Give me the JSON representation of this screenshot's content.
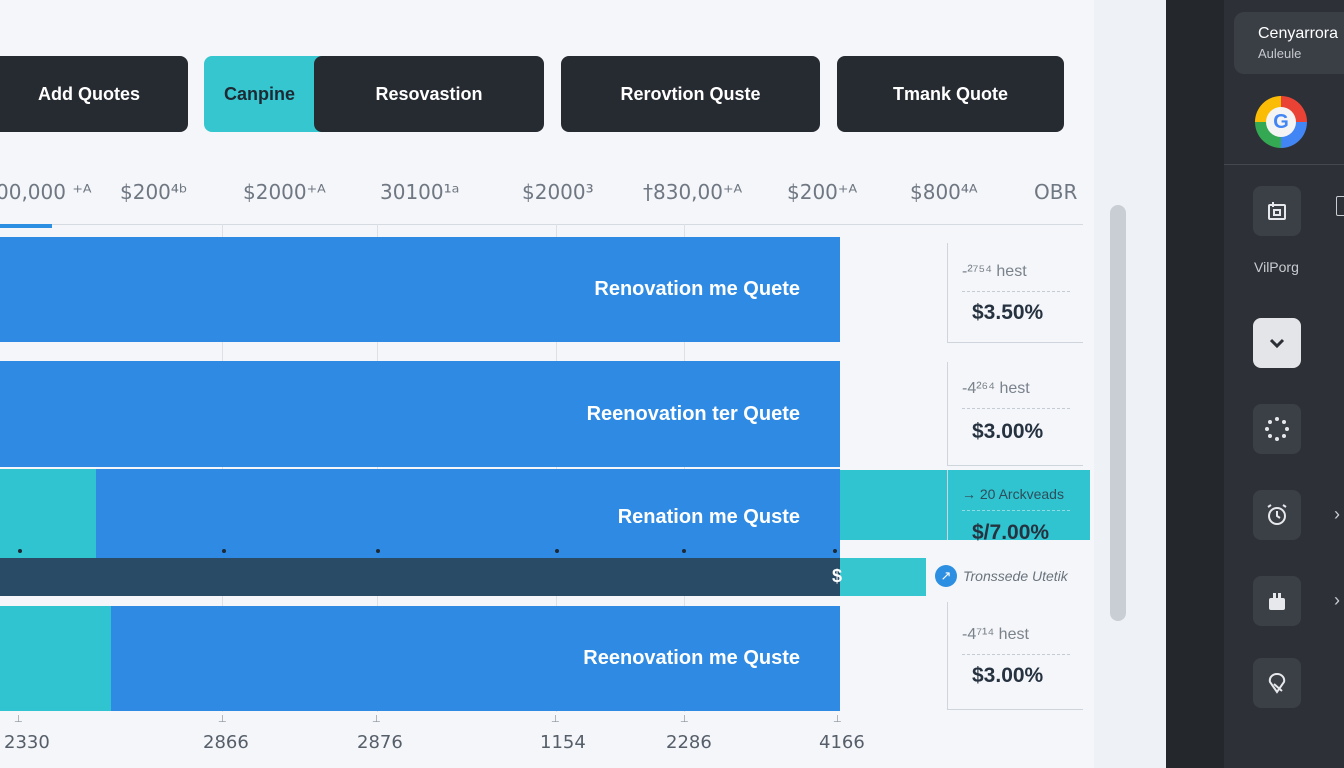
{
  "toolbar": {
    "add_quotes": "Add Quotes",
    "canpine": "Canpine",
    "resovastion": "Resovastion",
    "renovation_quote": "Rerovtion Quste",
    "tmank_quote": "Tmank Quote"
  },
  "header_values": [
    "00,000 ⁺ᴬ",
    "$200⁴ᵇ",
    "$2000⁺ᴬ",
    "30100¹ᵃ",
    "$2000³",
    "†830,00⁺ᴬ",
    "$200⁺ᴬ",
    "$800⁴ᴬ",
    "OBR"
  ],
  "bars": [
    {
      "label": "Renovation me Quete"
    },
    {
      "label": "Reenovation ter Quete"
    },
    {
      "label": "Renation me Quste"
    },
    {
      "label": "Reenovation me Quste"
    }
  ],
  "dollar_mark": "$",
  "cards": [
    {
      "label": "-²⁷⁵⁴ hest",
      "value": "$3.50%"
    },
    {
      "label": "-4²⁶⁴ hest",
      "value": "$3.00%"
    },
    {
      "label": "→ 20 Arckveads",
      "value": "$/7.00%"
    },
    {
      "label": "-4⁷¹⁴ hest",
      "value": "$3.00%"
    }
  ],
  "status": {
    "icon": "arrow-icon",
    "text": "Tronssede Utetik"
  },
  "x_labels": [
    "2330",
    "2866",
    "2876",
    "1154",
    "2286",
    "4166"
  ],
  "side_panel": {
    "account_name": "Cenyarrora",
    "account_sub": "Auleule",
    "section_label": "VilPorg",
    "icons": [
      "calendar-icon",
      "chevron-down-icon",
      "loading-icon",
      "alarm-icon",
      "gift-icon",
      "location-icon"
    ]
  },
  "colors": {
    "primary_blue": "#2e8ae2",
    "teal": "#2fc4cf",
    "dark": "#262a31"
  }
}
